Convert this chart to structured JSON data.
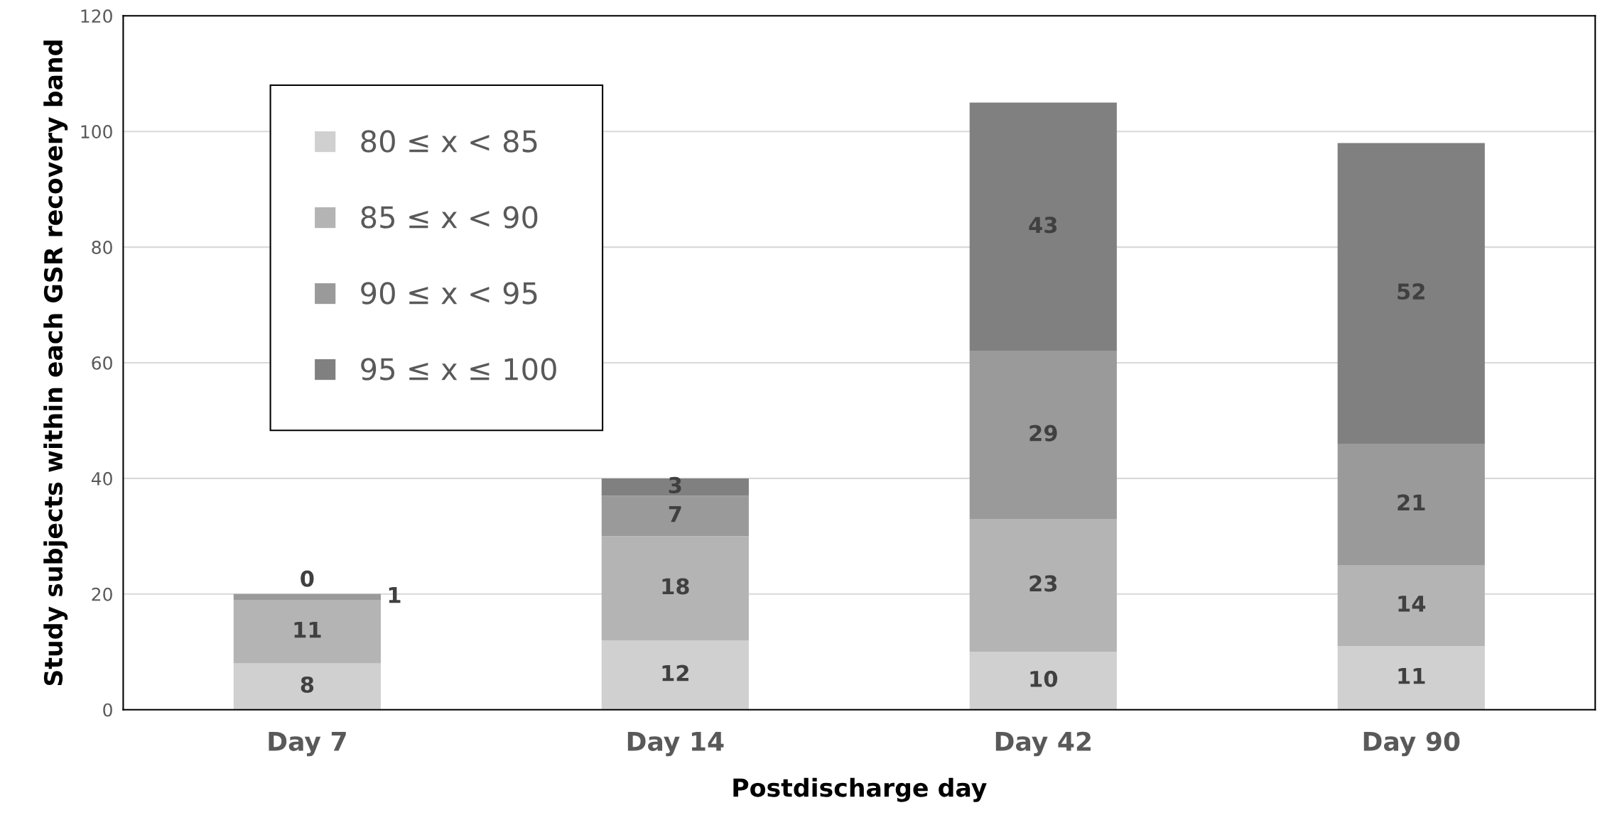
{
  "chart_data": {
    "type": "bar",
    "stacked": true,
    "xlabel": "Postdischarge day",
    "ylabel": "Study subjects within each GSR recovery band",
    "categories": [
      "Day 7",
      "Day 14",
      "Day 42",
      "Day 90"
    ],
    "series": [
      {
        "name": "80 ≤ x < 85",
        "color": "#d0d0d0",
        "values": [
          8,
          12,
          10,
          11
        ]
      },
      {
        "name": "85 ≤ x < 90",
        "color": "#b4b4b4",
        "values": [
          11,
          18,
          23,
          14
        ]
      },
      {
        "name": "90 ≤ x < 95",
        "color": "#9a9a9a",
        "values": [
          1,
          7,
          29,
          21
        ]
      },
      {
        "name": "95 ≤ x ≤ 100",
        "color": "#808080",
        "values": [
          0,
          3,
          43,
          52
        ]
      }
    ],
    "ylim": [
      0,
      120
    ],
    "yticks": [
      0,
      20,
      40,
      60,
      80,
      100,
      120
    ],
    "grid": "y",
    "legend": "top left",
    "data_labels": true
  }
}
